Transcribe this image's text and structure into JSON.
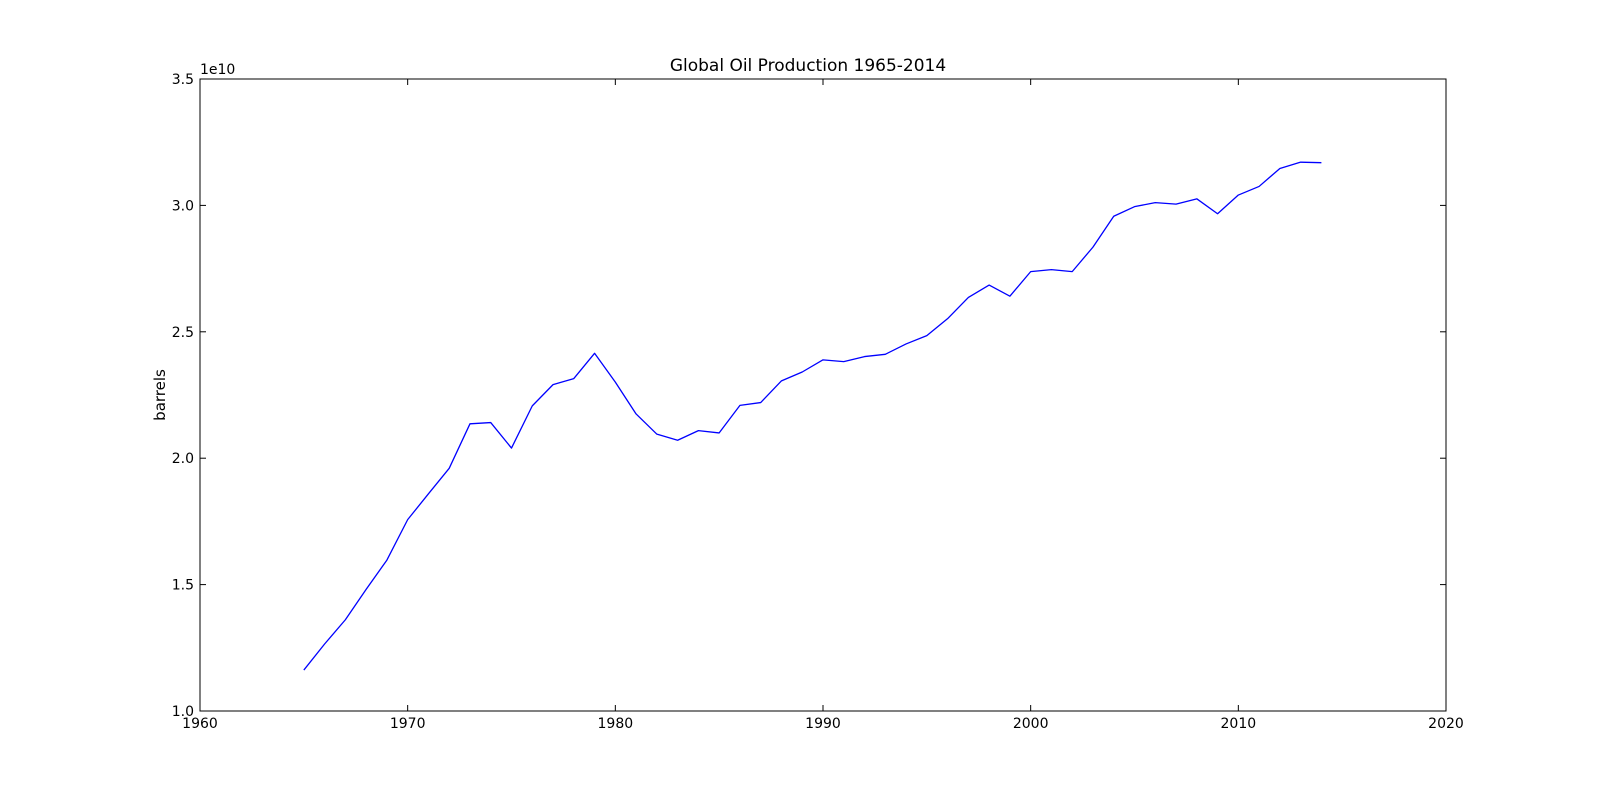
{
  "chart_data": {
    "type": "line",
    "title": "Global Oil Production 1965-2014",
    "xlabel": "",
    "ylabel": "barrels",
    "y_offset_label": "1e10",
    "xlim": [
      1960,
      2020
    ],
    "ylim": [
      1.0,
      3.5
    ],
    "y_scale_note": "values in units of 1e10 barrels",
    "x_ticks": [
      1960,
      1970,
      1980,
      1990,
      2000,
      2010,
      2020
    ],
    "x_tick_labels": [
      "1960",
      "1970",
      "1980",
      "1990",
      "2000",
      "2010",
      "2020"
    ],
    "y_ticks": [
      1.0,
      1.5,
      2.0,
      2.5,
      3.0,
      3.5
    ],
    "y_tick_labels": [
      "1.0",
      "1.5",
      "2.0",
      "2.5",
      "3.0",
      "3.5"
    ],
    "grid": false,
    "series": [
      {
        "name": "Global Oil Production",
        "color": "#0000ff",
        "x": [
          1965,
          1966,
          1967,
          1968,
          1969,
          1970,
          1971,
          1972,
          1973,
          1974,
          1975,
          1976,
          1977,
          1978,
          1979,
          1980,
          1981,
          1982,
          1983,
          1984,
          1985,
          1986,
          1987,
          1988,
          1989,
          1990,
          1991,
          1992,
          1993,
          1994,
          1995,
          1996,
          1997,
          1998,
          1999,
          2000,
          2001,
          2002,
          2003,
          2004,
          2005,
          2006,
          2007,
          2008,
          2009,
          2010,
          2011,
          2012,
          2013,
          2014
        ],
        "values": [
          1.162,
          1.265,
          1.361,
          1.481,
          1.597,
          1.757,
          1.859,
          1.96,
          2.136,
          2.141,
          2.04,
          2.207,
          2.291,
          2.315,
          2.415,
          2.301,
          2.175,
          2.095,
          2.071,
          2.109,
          2.1,
          2.209,
          2.22,
          2.306,
          2.341,
          2.389,
          2.382,
          2.402,
          2.411,
          2.452,
          2.485,
          2.552,
          2.636,
          2.685,
          2.641,
          2.738,
          2.746,
          2.738,
          2.835,
          2.957,
          2.995,
          3.011,
          3.005,
          3.026,
          2.967,
          3.041,
          3.075,
          3.146,
          3.171,
          3.169
        ]
      }
    ]
  }
}
